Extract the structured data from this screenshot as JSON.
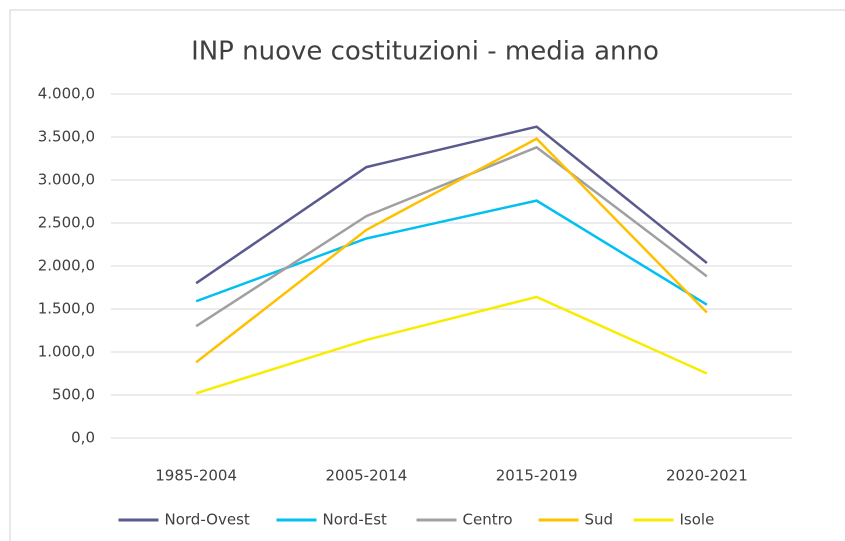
{
  "chart_data": {
    "type": "line",
    "title": "INP nuove costituzioni - media anno",
    "categories": [
      "1985-2004",
      "2005-2014",
      "2015-2019",
      "2020-2021"
    ],
    "series": [
      {
        "name": "Nord-Ovest",
        "color": "#5a5a8e",
        "values": [
          1800,
          3150,
          3620,
          2035
        ]
      },
      {
        "name": "Nord-Est",
        "color": "#00c0f0",
        "values": [
          1590,
          2320,
          2760,
          1550
        ]
      },
      {
        "name": "Centro",
        "color": "#a0a0a0",
        "values": [
          1300,
          2580,
          3380,
          1880
        ]
      },
      {
        "name": "Sud",
        "color": "#ffc000",
        "values": [
          880,
          2420,
          3480,
          1460
        ]
      },
      {
        "name": "Isole",
        "color": "#f8ec00",
        "values": [
          520,
          1140,
          1640,
          750
        ]
      }
    ],
    "ylim": [
      0,
      4000
    ],
    "yticks": [
      {
        "value": 0,
        "label": "0,0"
      },
      {
        "value": 500,
        "label": "500,0"
      },
      {
        "value": 1000,
        "label": "1.000,0"
      },
      {
        "value": 1500,
        "label": "1.500,0"
      },
      {
        "value": 2000,
        "label": "2.000,0"
      },
      {
        "value": 2500,
        "label": "2.500,0"
      },
      {
        "value": 3000,
        "label": "3.000,0"
      },
      {
        "value": 3500,
        "label": "3.500,0"
      },
      {
        "value": 4000,
        "label": "4.000,0"
      }
    ],
    "grid": true,
    "legend": "bottom"
  }
}
